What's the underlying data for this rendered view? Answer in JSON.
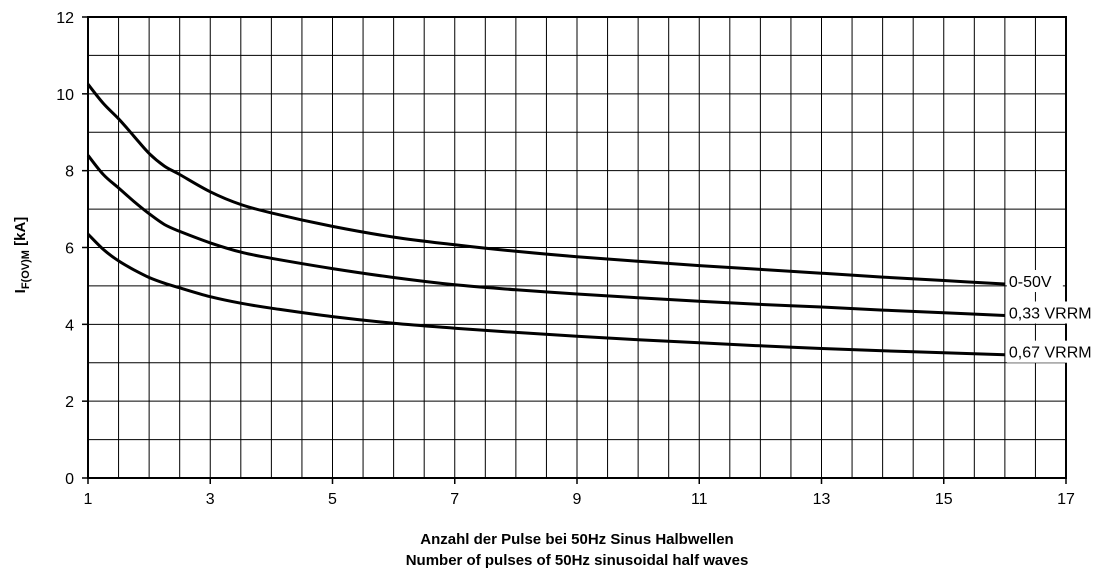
{
  "chart_data": {
    "type": "line",
    "title": "",
    "xlabel_lines": [
      "Anzahl der Pulse bei 50Hz Sinus Halbwellen",
      "Number of pulses of 50Hz sinusoidal half waves"
    ],
    "ylabel": {
      "main": "I",
      "subscript": "F(OV)M",
      "unit": " [kA]"
    },
    "xlim": [
      1,
      17
    ],
    "ylim": [
      0,
      12
    ],
    "x_ticks": [
      1,
      3,
      5,
      7,
      9,
      11,
      13,
      15,
      17
    ],
    "y_ticks": [
      0,
      2,
      4,
      6,
      8,
      10,
      12
    ],
    "x_minor_step": 0.5,
    "y_minor_step": 1,
    "grid": true,
    "series": [
      {
        "name": "0-50V",
        "x": [
          1,
          1.25,
          1.5,
          1.75,
          2,
          2.25,
          2.5,
          3,
          3.5,
          4,
          5,
          6,
          7,
          8,
          9,
          10,
          11,
          12,
          13,
          14,
          15,
          16
        ],
        "y": [
          10.25,
          9.75,
          9.35,
          8.9,
          8.45,
          8.12,
          7.9,
          7.45,
          7.12,
          6.9,
          6.55,
          6.27,
          6.07,
          5.9,
          5.76,
          5.64,
          5.53,
          5.43,
          5.33,
          5.23,
          5.14,
          5.05
        ]
      },
      {
        "name": "0,33 VRRM",
        "x": [
          1,
          1.25,
          1.5,
          1.75,
          2,
          2.25,
          2.5,
          3,
          3.5,
          4,
          5,
          6,
          7,
          8,
          9,
          10,
          11,
          12,
          13,
          14,
          15,
          16
        ],
        "y": [
          8.4,
          7.9,
          7.55,
          7.2,
          6.88,
          6.6,
          6.42,
          6.12,
          5.88,
          5.72,
          5.45,
          5.22,
          5.03,
          4.9,
          4.79,
          4.69,
          4.6,
          4.52,
          4.45,
          4.37,
          4.3,
          4.23
        ]
      },
      {
        "name": "0,67 VRRM",
        "x": [
          1,
          1.25,
          1.5,
          1.75,
          2,
          2.25,
          2.5,
          3,
          3.5,
          4,
          5,
          6,
          7,
          8,
          9,
          10,
          11,
          12,
          13,
          14,
          15,
          16
        ],
        "y": [
          6.35,
          5.95,
          5.65,
          5.42,
          5.22,
          5.07,
          4.95,
          4.72,
          4.55,
          4.42,
          4.2,
          4.03,
          3.9,
          3.79,
          3.69,
          3.6,
          3.52,
          3.44,
          3.37,
          3.31,
          3.26,
          3.21
        ]
      }
    ]
  }
}
